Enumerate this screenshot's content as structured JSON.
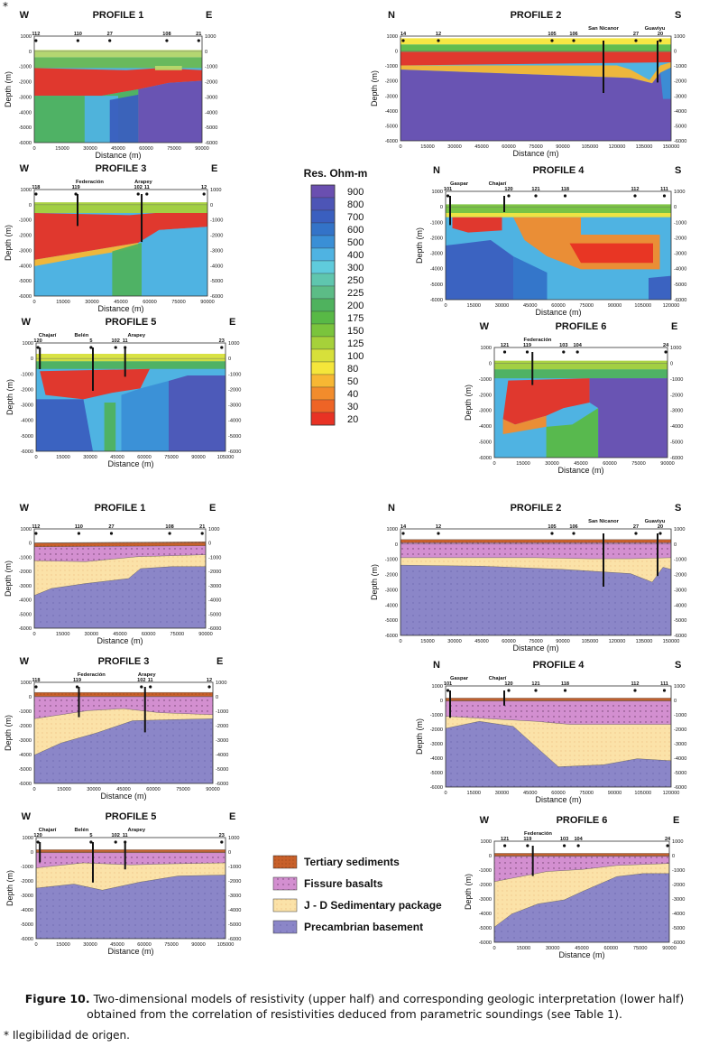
{
  "header_mark": "*",
  "caption": {
    "label": "Figure 10.",
    "text": "Two-dimensional models of resistivity (upper half) and corresponding geologic interpretation (lower half) obtained from the correlation of resistivities deduced from parametric soundings (see Table 1)."
  },
  "footnote": "* Ilegibilidad de origen.",
  "axis_labels": {
    "depth": "Depth (m)",
    "distance": "Distance (m)"
  },
  "resistivity_scale": {
    "title": "Res. Ohm-m",
    "levels": [
      {
        "value": "900",
        "color": "#6a4fb0"
      },
      {
        "value": "800",
        "color": "#4d55b6"
      },
      {
        "value": "700",
        "color": "#3a5fbf"
      },
      {
        "value": "600",
        "color": "#3373c8"
      },
      {
        "value": "500",
        "color": "#3a8fd6"
      },
      {
        "value": "400",
        "color": "#4fb3e2"
      },
      {
        "value": "300",
        "color": "#5fcbdc"
      },
      {
        "value": "250",
        "color": "#5fc6ae"
      },
      {
        "value": "225",
        "color": "#5cbc86"
      },
      {
        "value": "200",
        "color": "#4fb25e"
      },
      {
        "value": "175",
        "color": "#58b946"
      },
      {
        "value": "150",
        "color": "#7ac43c"
      },
      {
        "value": "125",
        "color": "#a6d13a"
      },
      {
        "value": "100",
        "color": "#d7e03a"
      },
      {
        "value": "80",
        "color": "#f5e63a"
      },
      {
        "value": "50",
        "color": "#f7b733"
      },
      {
        "value": "40",
        "color": "#f28c2c"
      },
      {
        "value": "30",
        "color": "#ee6426"
      },
      {
        "value": "20",
        "color": "#e83224"
      }
    ]
  },
  "geology_legend": [
    {
      "label": "Tertiary sediments",
      "color": "#c8602a"
    },
    {
      "label": "Fissure basalts",
      "color": "#d38fd0"
    },
    {
      "label": "J - D Sedimentary package",
      "color": "#fbe2a8"
    },
    {
      "label": "Precambrian basement",
      "color": "#8b86c8"
    }
  ],
  "profiles": [
    {
      "id": "p1",
      "title": "PROFILE 1",
      "left_dir": "W",
      "right_dir": "E",
      "x_ticks": [
        "0",
        "15000",
        "30000",
        "45000",
        "60000",
        "75000",
        "90000"
      ],
      "y_ticks": [
        "1000",
        "0",
        "-1000",
        "-2000",
        "-3000",
        "-4000",
        "-5000",
        "-6000"
      ],
      "stations": [
        {
          "label": "112",
          "f": 0.01
        },
        {
          "label": "110",
          "f": 0.26
        },
        {
          "label": "27",
          "f": 0.45
        },
        {
          "label": "108",
          "f": 0.79
        },
        {
          "label": "21",
          "f": 0.98
        }
      ],
      "named": [],
      "wells": []
    },
    {
      "id": "p2",
      "title": "PROFILE 2",
      "left_dir": "N",
      "right_dir": "S",
      "x_ticks": [
        "0",
        "15000",
        "30000",
        "45000",
        "60000",
        "75000",
        "90000",
        "105000",
        "120000",
        "135000",
        "150000"
      ],
      "y_ticks": [
        "1000",
        "0",
        "-1000",
        "-2000",
        "-3000",
        "-4000",
        "-5000",
        "-6000"
      ],
      "stations": [
        {
          "label": "14",
          "f": 0.01
        },
        {
          "label": "12",
          "f": 0.14
        },
        {
          "label": "105",
          "f": 0.56
        },
        {
          "label": "106",
          "f": 0.64
        },
        {
          "label": "27",
          "f": 0.87
        },
        {
          "label": "20",
          "f": 0.96
        }
      ],
      "named": [
        {
          "label": "San Nicanor",
          "f": 0.75
        },
        {
          "label": "Guaviyu",
          "f": 0.94
        }
      ],
      "wells": [
        {
          "f": 0.75,
          "d": 0.5
        },
        {
          "f": 0.95,
          "d": 0.4
        }
      ]
    },
    {
      "id": "p3",
      "title": "PROFILE 3",
      "left_dir": "W",
      "right_dir": "E",
      "x_ticks": [
        "0",
        "15000",
        "30000",
        "45000",
        "60000",
        "75000",
        "90000"
      ],
      "y_ticks": [
        "1000",
        "0",
        "-1000",
        "-2000",
        "-3000",
        "-4000",
        "-5000",
        "-6000"
      ],
      "stations": [
        {
          "label": "118",
          "f": 0.01
        },
        {
          "label": "119",
          "f": 0.24
        },
        {
          "label": "102",
          "f": 0.6
        },
        {
          "label": "11",
          "f": 0.65
        },
        {
          "label": "12",
          "f": 0.98
        }
      ],
      "named": [
        {
          "label": "Federación",
          "f": 0.32
        },
        {
          "label": "Arapey",
          "f": 0.63
        }
      ],
      "wells": [
        {
          "f": 0.25,
          "d": 0.3
        },
        {
          "f": 0.62,
          "d": 0.45
        }
      ]
    },
    {
      "id": "p4",
      "title": "PROFILE 4",
      "left_dir": "N",
      "right_dir": "S",
      "x_ticks": [
        "0",
        "15000",
        "30000",
        "45000",
        "60000",
        "75000",
        "90000",
        "105000",
        "120000"
      ],
      "y_ticks": [
        "1000",
        "0",
        "-1000",
        "-2000",
        "-3000",
        "-4000",
        "-5000",
        "-6000"
      ],
      "stations": [
        {
          "label": "101",
          "f": 0.01
        },
        {
          "label": "120",
          "f": 0.28
        },
        {
          "label": "121",
          "f": 0.4
        },
        {
          "label": "118",
          "f": 0.53
        },
        {
          "label": "112",
          "f": 0.84
        },
        {
          "label": "111",
          "f": 0.97
        }
      ],
      "named": [
        {
          "label": "Gaspar",
          "f": 0.06
        },
        {
          "label": "Chajarí",
          "f": 0.23
        }
      ],
      "wells": [
        {
          "f": 0.02,
          "d": 0.27
        },
        {
          "f": 0.26,
          "d": 0.15
        }
      ]
    },
    {
      "id": "p5",
      "title": "PROFILE 5",
      "left_dir": "W",
      "right_dir": "E",
      "x_ticks": [
        "0",
        "15000",
        "30000",
        "45000",
        "60000",
        "75000",
        "90000",
        "105000"
      ],
      "y_ticks": [
        "1000",
        "0",
        "-1000",
        "-2000",
        "-3000",
        "-4000",
        "-5000",
        "-6000"
      ],
      "stations": [
        {
          "label": "120",
          "f": 0.01
        },
        {
          "label": "5",
          "f": 0.29
        },
        {
          "label": "102",
          "f": 0.42
        },
        {
          "label": "11",
          "f": 0.47
        },
        {
          "label": "23",
          "f": 0.98
        }
      ],
      "named": [
        {
          "label": "Chajarí",
          "f": 0.06
        },
        {
          "label": "Belén",
          "f": 0.24
        },
        {
          "label": "Arapey",
          "f": 0.53
        }
      ],
      "wells": [
        {
          "f": 0.02,
          "d": 0.2
        },
        {
          "f": 0.3,
          "d": 0.4
        },
        {
          "f": 0.47,
          "d": 0.27
        }
      ]
    },
    {
      "id": "p6",
      "title": "PROFILE 6",
      "left_dir": "W",
      "right_dir": "E",
      "x_ticks": [
        "0",
        "15000",
        "30000",
        "45000",
        "60000",
        "75000",
        "90000"
      ],
      "y_ticks": [
        "1000",
        "0",
        "-1000",
        "-2000",
        "-3000",
        "-4000",
        "-5000",
        "-6000"
      ],
      "stations": [
        {
          "label": "121",
          "f": 0.06
        },
        {
          "label": "119",
          "f": 0.19
        },
        {
          "label": "103",
          "f": 0.4
        },
        {
          "label": "104",
          "f": 0.48
        },
        {
          "label": "24",
          "f": 0.99
        }
      ],
      "named": [
        {
          "label": "Federación",
          "f": 0.25
        }
      ],
      "wells": [
        {
          "f": 0.22,
          "d": 0.3
        }
      ]
    }
  ]
}
